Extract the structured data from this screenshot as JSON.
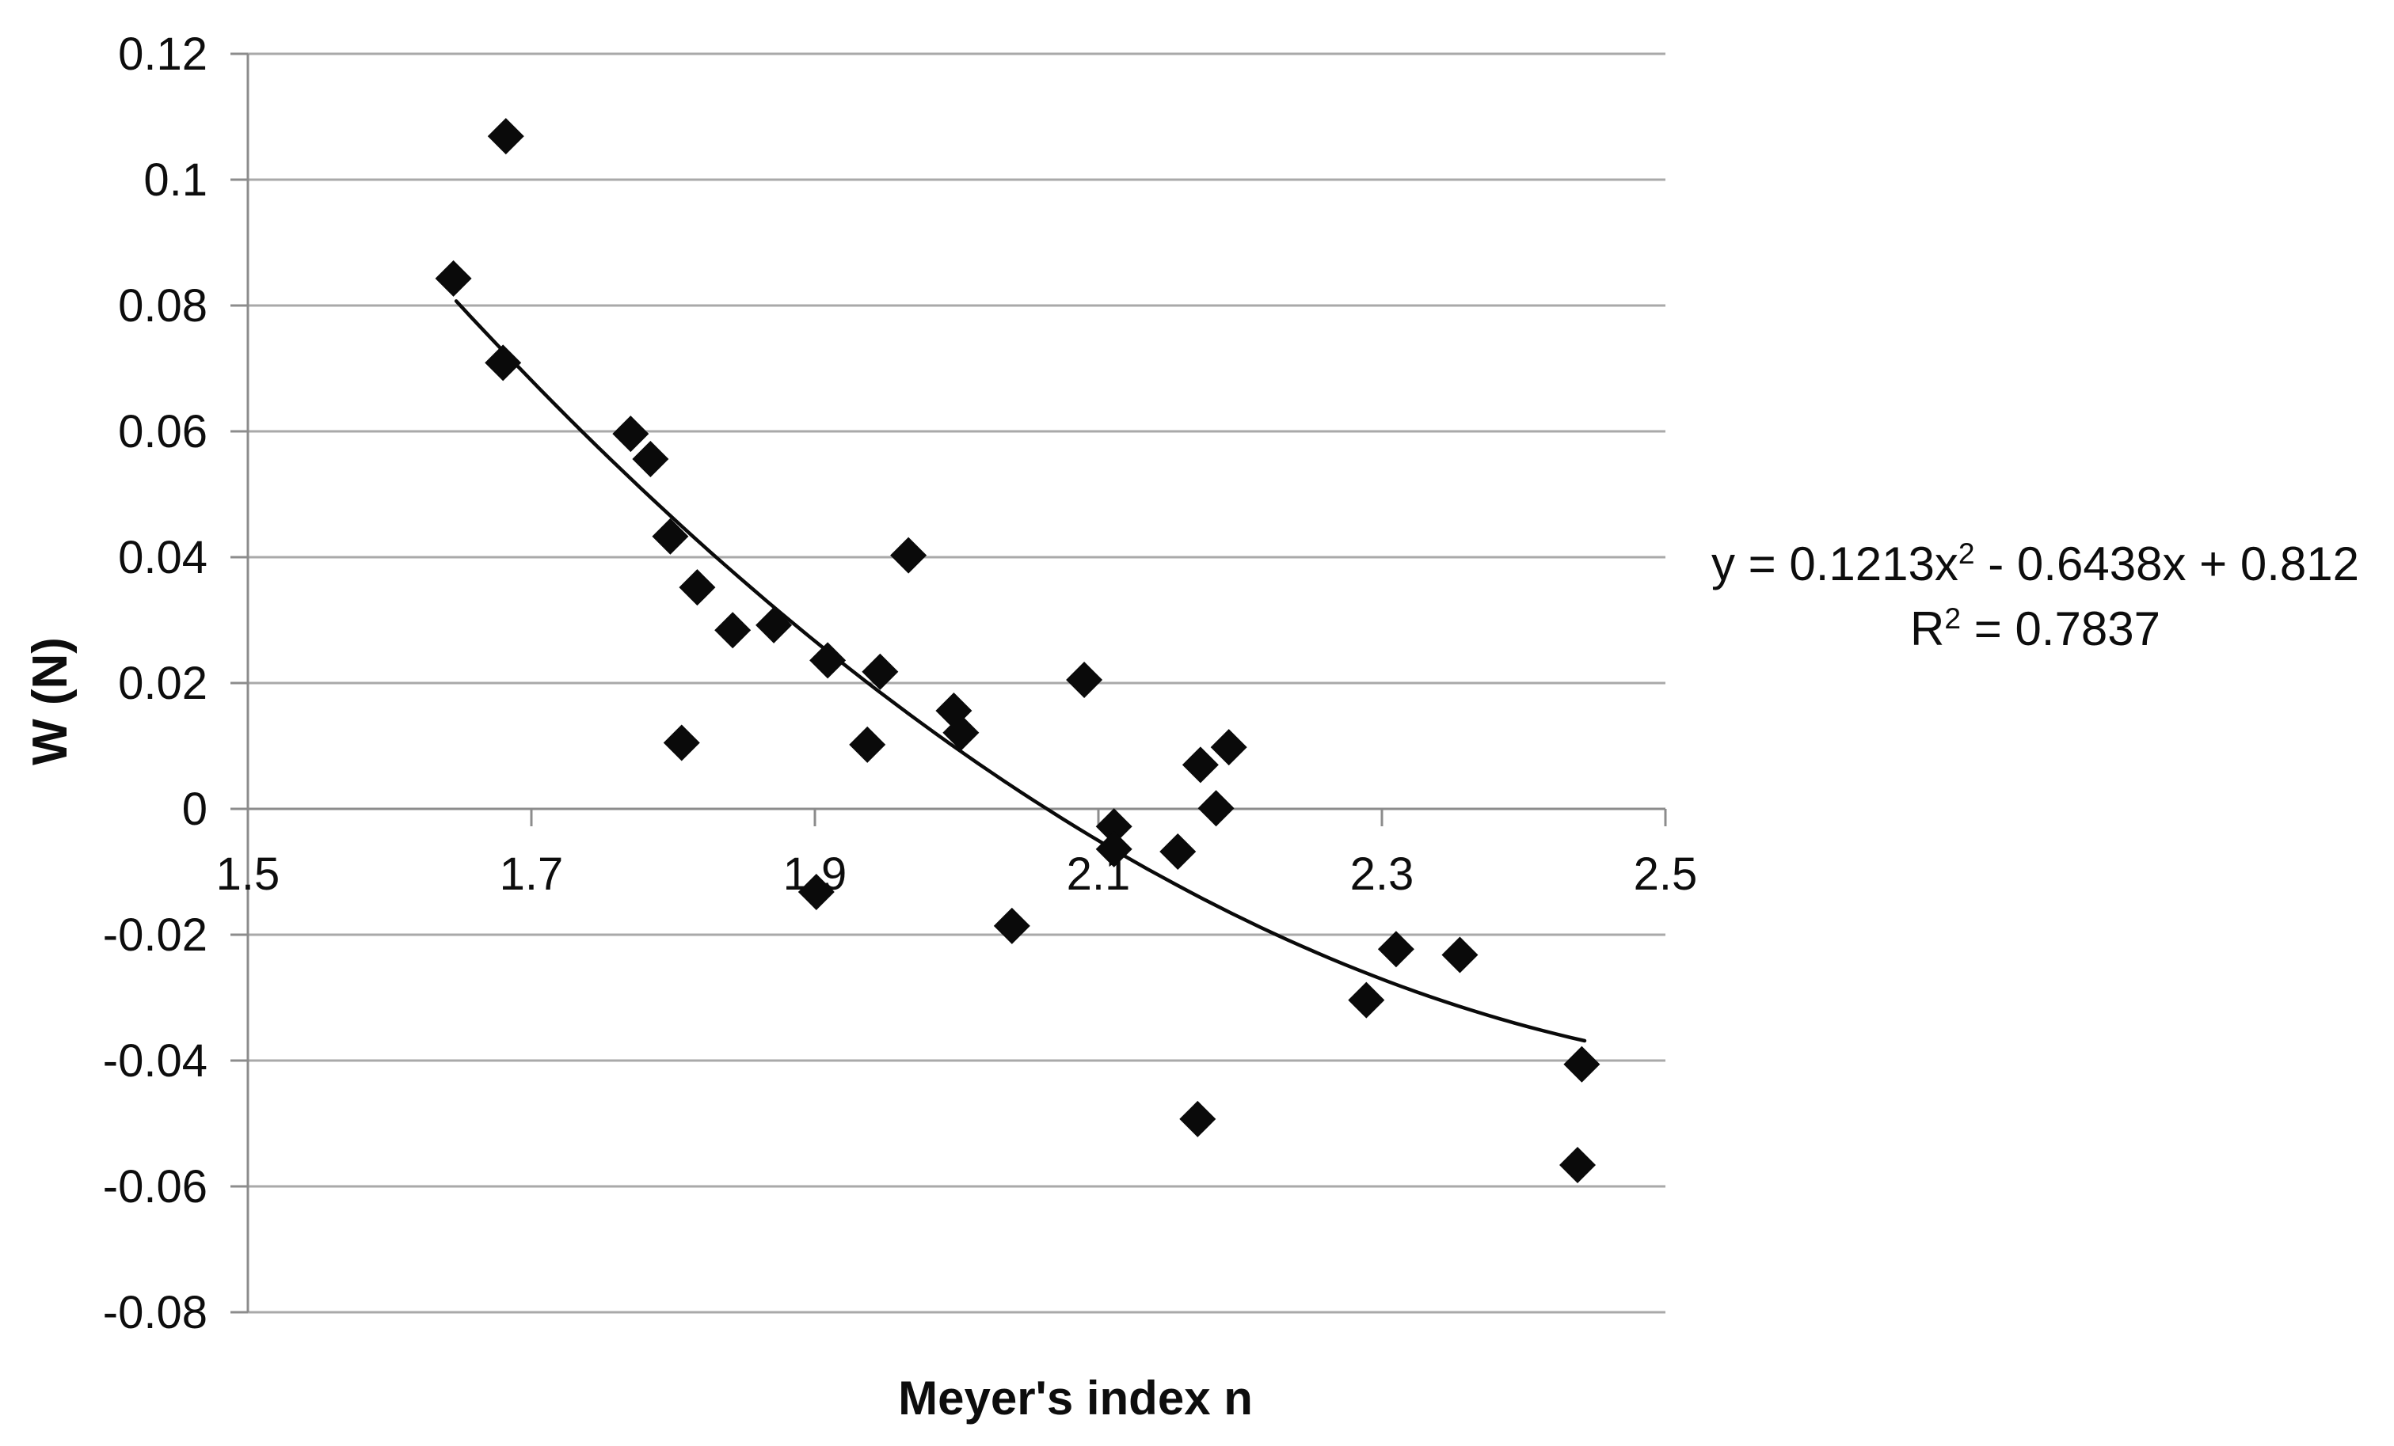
{
  "page": {
    "background": "#ffffff"
  },
  "equation": {
    "line1_pre": "y = 0.1213x",
    "line1_sup": "2",
    "line1_post": " - 0.6438x + 0.812",
    "line2_pre": "R",
    "line2_sup": "2",
    "line2_post": " = 0.7837"
  },
  "colors": {
    "marker": "#0a0a0a",
    "trendline": "#0a0a0a",
    "gridline": "#a9a9a9",
    "axis": "#8c8c8c",
    "text": "#0d0d0d",
    "background": "#ffffff"
  },
  "chart_data": {
    "type": "scatter",
    "title": "",
    "xlabel": "Meyer's index n",
    "ylabel": "W (N)",
    "xlim": [
      1.5,
      2.5
    ],
    "ylim": [
      -0.08,
      0.12
    ],
    "grid": "horizontal-only",
    "legend": "none",
    "marker_shape": "diamond",
    "x_ticks": [
      1.5,
      1.7,
      1.9,
      2.1,
      2.3,
      2.5
    ],
    "x_tick_labels": [
      "1.5",
      "1.7",
      "1.9",
      "2.1",
      "2.3",
      "2.5"
    ],
    "y_ticks": [
      0.12,
      0.1,
      0.08,
      0.06,
      0.04,
      0.02,
      0,
      -0.02,
      -0.04,
      -0.06,
      -0.08
    ],
    "y_tick_labels": [
      "0.12",
      "0.1",
      "0.08",
      "0.06",
      "0.04",
      "0.02",
      "0",
      "-0.02",
      "-0.04",
      "-0.06",
      "-0.08"
    ],
    "points": [
      [
        1.645,
        0.0843
      ],
      [
        1.682,
        0.1069
      ],
      [
        1.68,
        0.0709
      ],
      [
        1.77,
        0.0596
      ],
      [
        1.784,
        0.0556
      ],
      [
        1.798,
        0.0433
      ],
      [
        1.806,
        0.0105
      ],
      [
        1.817,
        0.0352
      ],
      [
        1.842,
        0.0284
      ],
      [
        1.871,
        0.0292
      ],
      [
        1.901,
        -0.0132
      ],
      [
        1.909,
        0.0236
      ],
      [
        1.937,
        0.0102
      ],
      [
        1.946,
        0.0218
      ],
      [
        1.966,
        0.0403
      ],
      [
        1.998,
        0.0156
      ],
      [
        2.003,
        0.0121
      ],
      [
        2.039,
        -0.0186
      ],
      [
        2.09,
        0.0205
      ],
      [
        2.111,
        -0.0028
      ],
      [
        2.111,
        -0.0064
      ],
      [
        2.156,
        -0.0068
      ],
      [
        2.17,
        -0.0493
      ],
      [
        2.172,
        0.007
      ],
      [
        2.183,
        0.0001
      ],
      [
        2.192,
        0.0098
      ],
      [
        2.289,
        -0.0304
      ],
      [
        2.31,
        -0.0223
      ],
      [
        2.355,
        -0.0232
      ],
      [
        2.441,
        -0.0406
      ],
      [
        2.438,
        -0.0566
      ]
    ],
    "trendline": {
      "type": "polynomial",
      "order": 2,
      "a": 0.1213,
      "b": -0.6438,
      "c": 0.812,
      "x_start": 1.647,
      "x_end": 2.443,
      "equation_text": "y = 0.1213x² - 0.6438x + 0.812",
      "r_squared_text": "R² = 0.7837",
      "r_squared": 0.7837
    }
  }
}
